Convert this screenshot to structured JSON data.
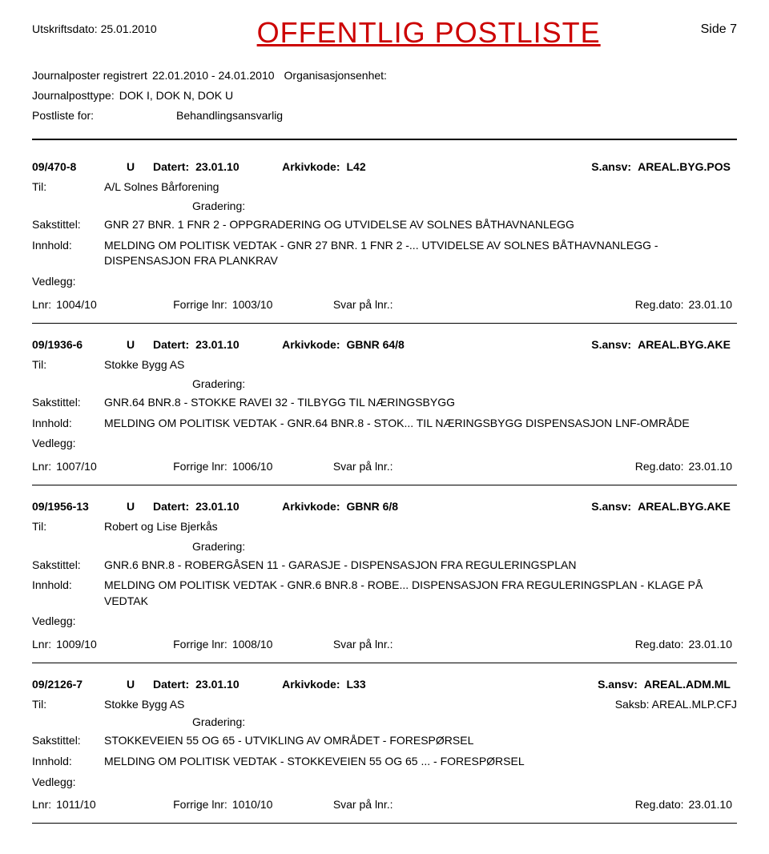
{
  "header": {
    "print_date_label": "Utskriftsdato:",
    "print_date": "25.01.2010",
    "title": "OFFENTLIG POSTLISTE",
    "page_label": "Side 7"
  },
  "meta": {
    "journalposts_label": "Journalposter registrert",
    "journalposts_value": "22.01.2010 - 24.01.2010",
    "org_label": "Organisasjonsenhet:",
    "posttype_label": "Journalposttype:",
    "posttype_value": "DOK I, DOK N, DOK U",
    "postliste_label": "Postliste for:",
    "behandling_value": "Behandlingsansvarlig"
  },
  "labels": {
    "datert": "Datert:",
    "arkivkode": "Arkivkode:",
    "sansv": "S.ansv:",
    "til": "Til:",
    "gradering": "Gradering:",
    "sakstittel": "Sakstittel:",
    "innhold": "Innhold:",
    "vedlegg": "Vedlegg:",
    "lnr": "Lnr:",
    "forrige": "Forrige lnr:",
    "svar": "Svar på lnr.:",
    "regdato": "Reg.dato:",
    "saksb": "Saksb:"
  },
  "entries": [
    {
      "id": "09/470-8",
      "type": "U",
      "date": "23.01.10",
      "arkivkode": "L42",
      "ansv": "AREAL.BYG.POS",
      "til": "A/L Solnes Bårforening",
      "sakstittel": "GNR 27 BNR. 1 FNR 2 - OPPGRADERING OG UTVIDELSE AV  SOLNES BÅTHAVNANLEGG",
      "innhold": "MELDING OM POLITISK VEDTAK - GNR 27 BNR. 1 FNR 2 -... UTVIDELSE AV  SOLNES BÅTHAVNANLEGG - DISPENSASJON FRA PLANKRAV",
      "lnr": "1004/10",
      "forrige": "1003/10",
      "regdato": "23.01.10",
      "saksb": ""
    },
    {
      "id": "09/1936-6",
      "type": "U",
      "date": "23.01.10",
      "arkivkode": "GBNR 64/8",
      "ansv": "AREAL.BYG.AKE",
      "til": "Stokke Bygg AS",
      "sakstittel": "GNR.64 BNR.8 - STOKKE RAVEI 32 - TILBYGG TIL NÆRINGSBYGG",
      "innhold": "MELDING OM POLITISK VEDTAK - GNR.64 BNR.8 - STOK... TIL NÆRINGSBYGG DISPENSASJON LNF-OMRÅDE",
      "lnr": "1007/10",
      "forrige": "1006/10",
      "regdato": "23.01.10",
      "saksb": ""
    },
    {
      "id": "09/1956-13",
      "type": "U",
      "date": "23.01.10",
      "arkivkode": "GBNR 6/8",
      "ansv": "AREAL.BYG.AKE",
      "til": "Robert og Lise Bjerkås",
      "sakstittel": "GNR.6 BNR.8 - ROBERGÅSEN 11 - GARASJE - DISPENSASJON FRA  REGULERINGSPLAN",
      "innhold": "MELDING OM POLITISK VEDTAK - GNR.6 BNR.8 - ROBE... DISPENSASJON FRA REGULERINGSPLAN - KLAGE PÅ VEDTAK",
      "lnr": "1009/10",
      "forrige": "1008/10",
      "regdato": "23.01.10",
      "saksb": ""
    },
    {
      "id": "09/2126-7",
      "type": "U",
      "date": "23.01.10",
      "arkivkode": "L33",
      "ansv": "AREAL.ADM.ML",
      "til": "Stokke Bygg AS",
      "sakstittel": "STOKKEVEIEN 55 OG 65 - UTVIKLING AV OMRÅDET - FORESPØRSEL",
      "innhold": "MELDING OM POLITISK VEDTAK - STOKKEVEIEN 55 OG 65 ... - FORESPØRSEL",
      "lnr": "1011/10",
      "forrige": "1010/10",
      "regdato": "23.01.10",
      "saksb": "AREAL.MLP.CFJ"
    }
  ]
}
